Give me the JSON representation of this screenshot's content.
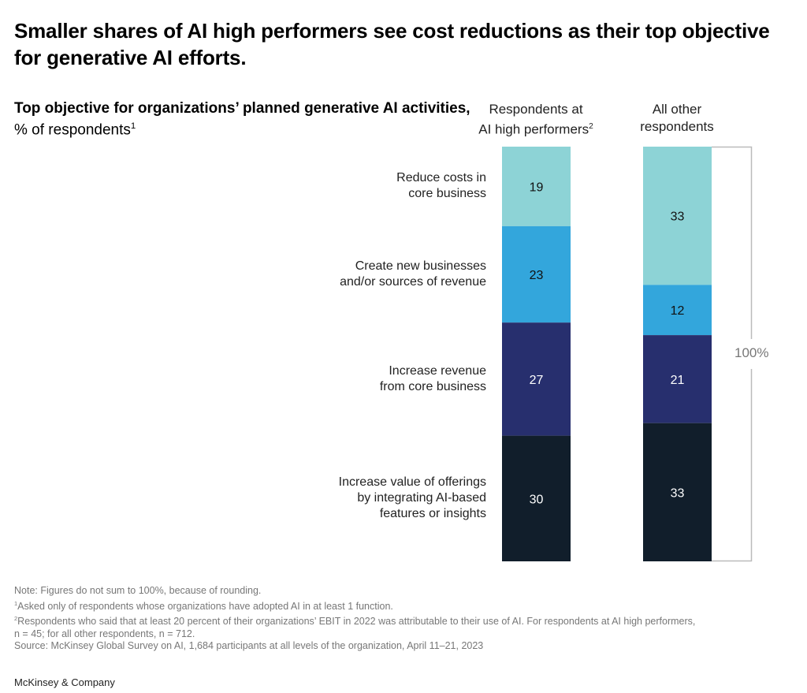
{
  "title": "Smaller shares of AI high performers see cost reductions as their top objective for generative AI efforts.",
  "subtitle_bold": "Top objective for organizations’ planned generative AI activities,",
  "subtitle_regular": "% of respondents",
  "subtitle_sup": "1",
  "chart_data": {
    "type": "bar",
    "stacked": true,
    "categories": [
      "Respondents at AI high performers",
      "All other respondents"
    ],
    "category_sups": [
      "2",
      ""
    ],
    "category_lines": [
      [
        "Respondents at",
        "AI high performers"
      ],
      [
        "All other",
        "respondents"
      ]
    ],
    "series": [
      {
        "name": "Reduce costs in core business",
        "lines": [
          "Reduce costs in",
          "core business"
        ],
        "values": [
          19,
          33
        ],
        "color": "#8dd3d6"
      },
      {
        "name": "Create new businesses and/or sources of revenue",
        "lines": [
          "Create new businesses",
          "and/or sources of revenue"
        ],
        "values": [
          23,
          12
        ],
        "color": "#33a6dc"
      },
      {
        "name": "Increase revenue from core business",
        "lines": [
          "Increase revenue",
          "from core business"
        ],
        "values": [
          27,
          21
        ],
        "color": "#272f6e"
      },
      {
        "name": "Increase value of offerings by integrating AI-based features or insights",
        "lines": [
          "Increase value of offerings",
          "by integrating AI-based",
          "features or insights"
        ],
        "values": [
          30,
          33
        ],
        "color": "#111e2b"
      }
    ],
    "total_label": "100%"
  },
  "footnotes": {
    "note": "Note: Figures do not sum to 100%, because of rounding.",
    "fn1_sup": "1",
    "fn1": "Asked only of respondents whose organizations have adopted AI in at least 1 function.",
    "fn2_sup": "2",
    "fn2": "Respondents who said that at least 20 percent of their organizations’ EBIT in 2022 was attributable to their use of AI. For respondents at AI high performers,",
    "fn2b": " n = 45; for all other respondents, n = 712.",
    "source": "Source: McKinsey Global Survey on AI, 1,684 participants at all levels of the organization, April 11–21, 2023"
  },
  "brand": "McKinsey & Company"
}
